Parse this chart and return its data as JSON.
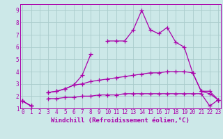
{
  "title": "",
  "xlabel": "Windchill (Refroidissement éolien,°C)",
  "background_color": "#cce8e8",
  "grid_color": "#aacccc",
  "line_color": "#aa00aa",
  "x": [
    0,
    1,
    2,
    3,
    4,
    5,
    6,
    7,
    8,
    9,
    10,
    11,
    12,
    13,
    14,
    15,
    16,
    17,
    18,
    19,
    20,
    21,
    22,
    23
  ],
  "line1": [
    1.6,
    1.2,
    null,
    2.3,
    2.4,
    2.6,
    2.9,
    3.7,
    5.4,
    null,
    6.5,
    6.5,
    6.5,
    7.4,
    9.0,
    7.4,
    7.1,
    7.6,
    6.4,
    6.0,
    3.9,
    2.4,
    2.4,
    1.7
  ],
  "line2": [
    1.6,
    1.2,
    null,
    2.3,
    2.4,
    2.6,
    2.9,
    3.0,
    3.2,
    3.3,
    3.4,
    3.5,
    3.6,
    3.7,
    3.8,
    3.9,
    3.9,
    4.0,
    4.0,
    4.0,
    3.9,
    2.4,
    2.2,
    1.7
  ],
  "line3": [
    1.6,
    1.2,
    null,
    1.8,
    1.8,
    1.9,
    1.9,
    2.0,
    2.0,
    2.1,
    2.1,
    2.1,
    2.2,
    2.2,
    2.2,
    2.2,
    2.2,
    2.2,
    2.2,
    2.2,
    2.2,
    2.2,
    1.2,
    1.7
  ],
  "ylim": [
    1.0,
    9.5
  ],
  "xlim": [
    -0.3,
    23.3
  ],
  "yticks": [
    1,
    2,
    3,
    4,
    5,
    6,
    7,
    8,
    9
  ],
  "xticks": [
    0,
    1,
    2,
    3,
    4,
    5,
    6,
    7,
    8,
    9,
    10,
    11,
    12,
    13,
    14,
    15,
    16,
    17,
    18,
    19,
    20,
    21,
    22,
    23
  ],
  "marker": "+",
  "markersize": 4,
  "linewidth": 0.9,
  "fontsize_label": 6.5,
  "fontsize_tick": 5.5
}
